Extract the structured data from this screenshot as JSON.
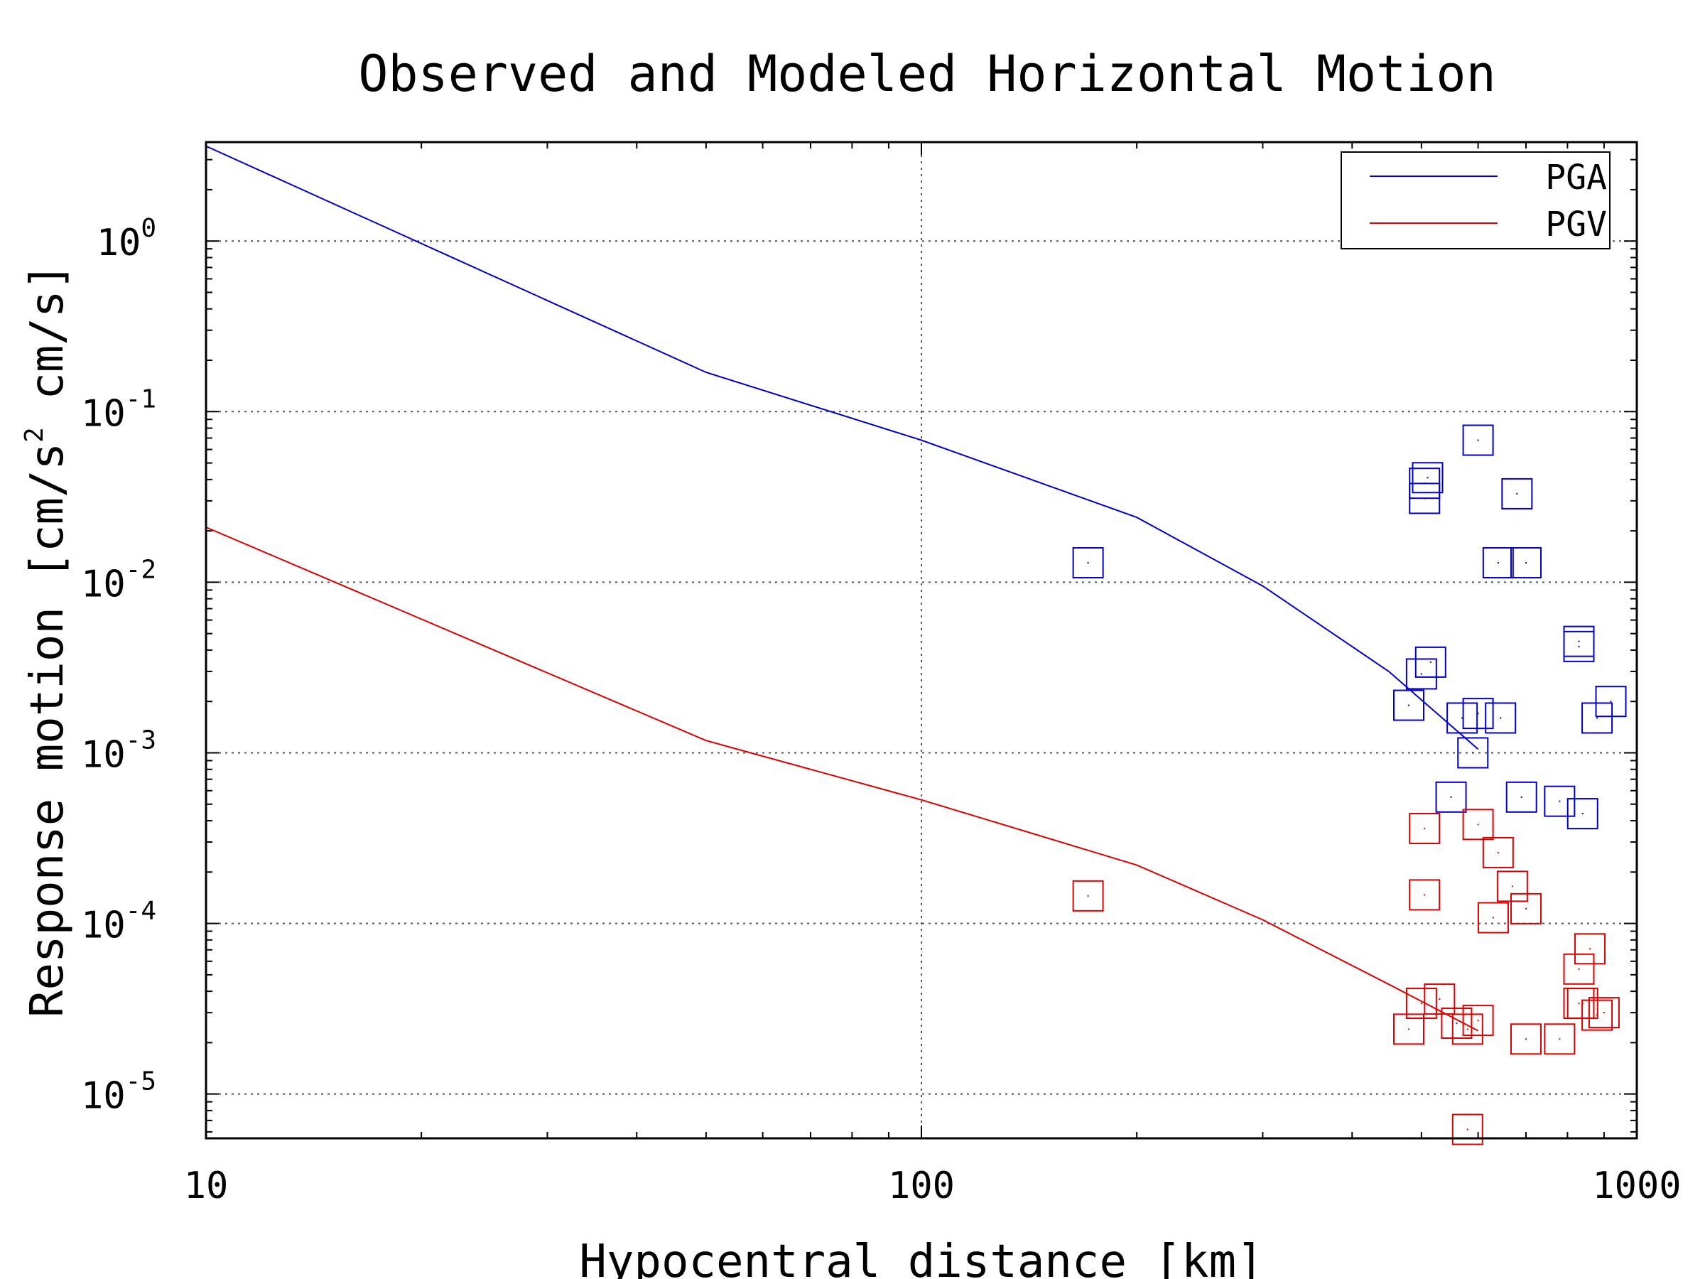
{
  "chart_data": {
    "type": "scatter",
    "title": "Observed and Modeled Horizontal Motion",
    "xlabel": "Hypocentral distance [km]",
    "ylabel": {
      "prefix": "Response motion [cm/s",
      "superscript": "2",
      "suffix": "  cm/s]"
    },
    "x_scale": "log",
    "y_scale": "log",
    "xlim": [
      10,
      1000
    ],
    "ylim": [
      5.5e-06,
      3.8
    ],
    "x_ticks": [
      {
        "value": 10,
        "label": "10"
      },
      {
        "value": 100,
        "label": "100"
      },
      {
        "value": 1000,
        "label": "1000"
      }
    ],
    "y_ticks": [
      {
        "value": 1,
        "base": "10",
        "exp": "0"
      },
      {
        "value": 0.1,
        "base": "10",
        "exp": "-1"
      },
      {
        "value": 0.01,
        "base": "10",
        "exp": "-2"
      },
      {
        "value": 0.001,
        "base": "10",
        "exp": "-3"
      },
      {
        "value": 0.0001,
        "base": "10",
        "exp": "-4"
      },
      {
        "value": 1e-05,
        "base": "10",
        "exp": "-5"
      }
    ],
    "grid": true,
    "legend_position": "top-right",
    "series": [
      {
        "name": "PGA",
        "color": "#0000cc",
        "line": {
          "x": [
            10,
            50,
            100,
            200,
            300,
            450,
            600
          ],
          "y": [
            3.6,
            0.17,
            0.068,
            0.024,
            0.0095,
            0.003,
            0.00105
          ]
        },
        "points": {
          "x": [
            171,
            505,
            510,
            505,
            600,
            680,
            640,
            700,
            830,
            830,
            515,
            500,
            480,
            570,
            590,
            645,
            600,
            550,
            690,
            780,
            840,
            920,
            880
          ],
          "y": [
            0.013,
            0.038,
            0.041,
            0.031,
            0.068,
            0.033,
            0.013,
            0.013,
            0.0042,
            0.0045,
            0.0034,
            0.0029,
            0.0019,
            0.0016,
            0.001,
            0.0016,
            0.0017,
            0.00055,
            0.00055,
            0.00052,
            0.00044,
            0.002,
            0.0016
          ]
        }
      },
      {
        "name": "PGV",
        "color": "#dd0000",
        "line": {
          "x": [
            10,
            50,
            100,
            200,
            300,
            450,
            600
          ],
          "y": [
            0.021,
            0.00118,
            0.00053,
            0.00022,
            0.000105,
            4.4e-05,
            2.35e-05
          ]
        },
        "points": {
          "x": [
            171,
            505,
            505,
            600,
            640,
            670,
            630,
            700,
            830,
            830,
            860,
            500,
            530,
            480,
            560,
            600,
            580,
            700,
            780,
            840,
            900,
            880,
            580
          ],
          "y": [
            0.000145,
            0.00036,
            0.000147,
            0.00038,
            0.00026,
            0.000165,
            0.000108,
            0.000122,
            5.4e-05,
            3.4e-05,
            7.1e-05,
            3.4e-05,
            3.6e-05,
            2.4e-05,
            2.6e-05,
            2.7e-05,
            2.4e-05,
            2.1e-05,
            2.1e-05,
            3.4e-05,
            3e-05,
            2.9e-05,
            6.2e-06
          ]
        }
      }
    ]
  }
}
